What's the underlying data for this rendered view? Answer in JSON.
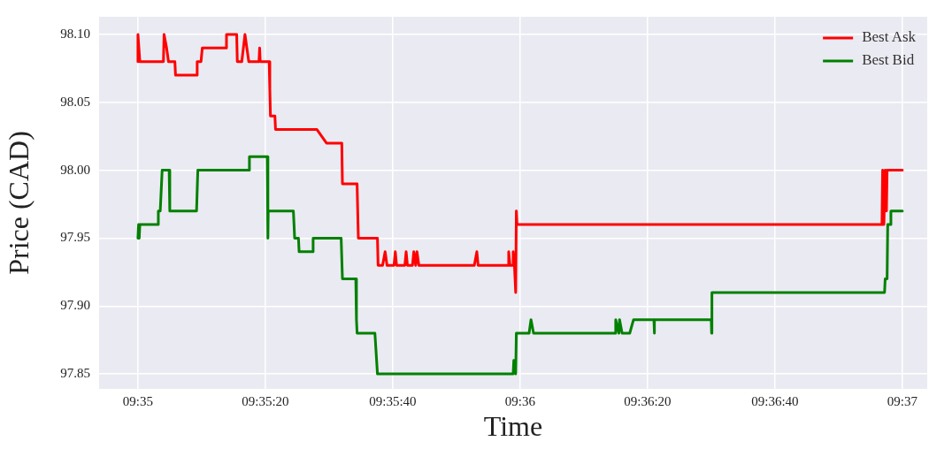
{
  "chart_data": {
    "type": "line",
    "xlabel": "Time",
    "ylabel": "Price (CAD)",
    "xlim": [
      9.581639,
      9.61775
    ],
    "ylim": [
      97.839,
      98.113
    ],
    "xticks": [
      {
        "value": 9.583333,
        "label": "09:35"
      },
      {
        "value": 9.588889,
        "label": "09:35:20"
      },
      {
        "value": 9.594444,
        "label": "09:35:40"
      },
      {
        "value": 9.6,
        "label": "09:36"
      },
      {
        "value": 9.605556,
        "label": "09:36:20"
      },
      {
        "value": 9.611111,
        "label": "09:36:40"
      },
      {
        "value": 9.616667,
        "label": "09:37"
      }
    ],
    "yticks": [
      {
        "value": 97.85,
        "label": "97.85"
      },
      {
        "value": 97.9,
        "label": "97.90"
      },
      {
        "value": 97.95,
        "label": "97.95"
      },
      {
        "value": 98.0,
        "label": "98.00"
      },
      {
        "value": 98.05,
        "label": "98.05"
      },
      {
        "value": 98.1,
        "label": "98.10"
      }
    ],
    "grid": true,
    "legend": "top right",
    "marker": "none",
    "line_style": "solid",
    "series": [
      {
        "name": "Best Ask",
        "color": "#ff0000",
        "x": [
          9.583333,
          9.583333,
          9.583416,
          9.584444,
          9.584472,
          9.584583,
          9.584666,
          9.584944,
          9.584972,
          9.585889,
          9.585916,
          9.586083,
          9.586139,
          9.587166,
          9.587194,
          9.587639,
          9.587666,
          9.587861,
          9.588,
          9.588166,
          9.588611,
          9.588639,
          9.588666,
          9.589055,
          9.589083,
          9.589111,
          9.589305,
          9.589333,
          9.591139,
          9.591555,
          9.592222,
          9.59225,
          9.592889,
          9.592916,
          9.592944,
          9.593777,
          9.593805,
          9.594,
          9.594111,
          9.594194,
          9.5945,
          9.594555,
          9.594611,
          9.594972,
          9.595027,
          9.595083,
          9.595305,
          9.595361,
          9.595444,
          9.5955,
          9.595583,
          9.598,
          9.598111,
          9.598166,
          9.599472,
          9.5995,
          9.599555,
          9.599666,
          9.599694,
          9.59975,
          9.599805,
          9.599833,
          9.599861,
          9.615777,
          9.615805,
          9.615861,
          9.615916,
          9.615972,
          9.616,
          9.616666
        ],
        "values": [
          98.08,
          98.1,
          98.08,
          98.08,
          98.1,
          98.09,
          98.08,
          98.08,
          98.07,
          98.07,
          98.08,
          98.08,
          98.09,
          98.09,
          98.1,
          98.1,
          98.08,
          98.08,
          98.1,
          98.08,
          98.08,
          98.09,
          98.08,
          98.08,
          98.06,
          98.04,
          98.04,
          98.03,
          98.03,
          98.02,
          98.02,
          97.99,
          97.99,
          97.97,
          97.95,
          97.95,
          97.93,
          97.93,
          97.94,
          97.93,
          97.93,
          97.94,
          97.93,
          97.93,
          97.94,
          97.93,
          97.93,
          97.94,
          97.93,
          97.94,
          97.93,
          97.93,
          97.94,
          97.93,
          97.93,
          97.94,
          97.93,
          97.93,
          97.94,
          97.93,
          97.91,
          97.97,
          97.96,
          97.96,
          98.0,
          97.96,
          98.0,
          97.97,
          98.0,
          98.0
        ]
      },
      {
        "name": "Best Bid",
        "color": "#008000",
        "x": [
          9.583333,
          9.583361,
          9.583389,
          9.583416,
          9.584194,
          9.584222,
          9.584305,
          9.584389,
          9.584694,
          9.584722,
          9.585889,
          9.585944,
          9.588166,
          9.588194,
          9.588972,
          9.589,
          9.589014,
          9.590111,
          9.590139,
          9.590166,
          9.590333,
          9.590361,
          9.590944,
          9.590972,
          9.592194,
          9.59225,
          9.592833,
          9.592861,
          9.592889,
          9.593666,
          9.593777,
          9.599694,
          9.599722,
          9.599805,
          9.599833,
          9.600389,
          9.600472,
          9.600583,
          9.604139,
          9.604166,
          9.604305,
          9.604333,
          9.604444,
          9.604777,
          9.604944,
          9.605833,
          9.605847,
          9.605861,
          9.608333,
          9.608347,
          9.608361,
          9.615889,
          9.615916,
          9.616,
          9.616027,
          9.616139,
          9.616166,
          9.616666
        ],
        "values": [
          97.95,
          97.96,
          97.95,
          97.96,
          97.96,
          97.97,
          97.97,
          98.0,
          98.0,
          97.97,
          97.97,
          98.0,
          98.0,
          98.01,
          98.01,
          97.95,
          97.97,
          97.97,
          97.96,
          97.95,
          97.95,
          97.94,
          97.94,
          97.95,
          97.95,
          97.92,
          97.92,
          97.89,
          97.88,
          97.88,
          97.85,
          97.85,
          97.86,
          97.85,
          97.88,
          97.88,
          97.89,
          97.88,
          97.88,
          97.89,
          97.88,
          97.89,
          97.88,
          97.88,
          97.89,
          97.89,
          97.88,
          97.89,
          97.89,
          97.88,
          97.91,
          97.91,
          97.92,
          97.92,
          97.96,
          97.96,
          97.97,
          97.97
        ]
      }
    ]
  }
}
